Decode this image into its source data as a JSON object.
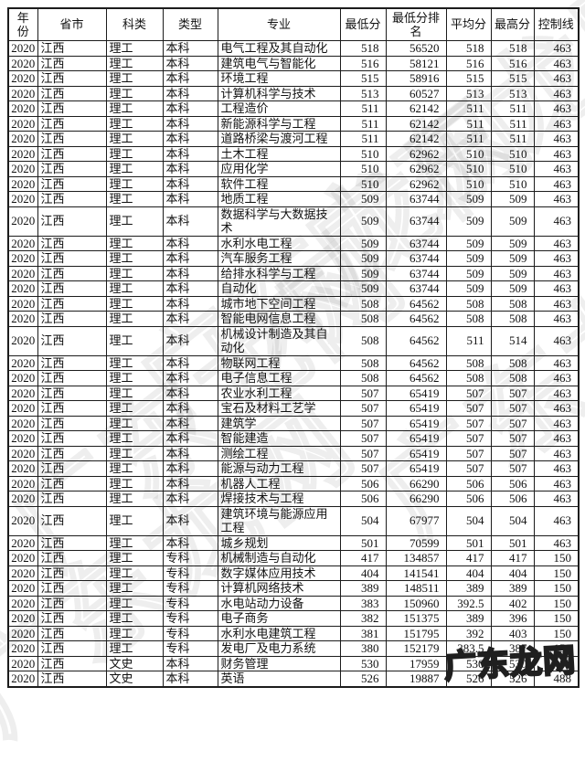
{
  "colors": {
    "border": "#1c1c1c",
    "text": "#111111",
    "background": "#ffffff"
  },
  "watermark": {
    "text": "广东龙网",
    "corner_text": "广东龙网"
  },
  "table": {
    "headers": [
      "年份",
      "省市",
      "科类",
      "类型",
      "专业",
      "最低分",
      "最低分排名",
      "平均分",
      "最高分",
      "控制线"
    ],
    "rows": [
      [
        "2020",
        "江西",
        "理工",
        "本科",
        "电气工程及其自动化",
        "518",
        "56520",
        "518",
        "518",
        "463"
      ],
      [
        "2020",
        "江西",
        "理工",
        "本科",
        "建筑电气与智能化",
        "516",
        "58121",
        "516",
        "516",
        "463"
      ],
      [
        "2020",
        "江西",
        "理工",
        "本科",
        "环境工程",
        "515",
        "58916",
        "515",
        "515",
        "463"
      ],
      [
        "2020",
        "江西",
        "理工",
        "本科",
        "计算机科学与技术",
        "513",
        "60527",
        "513",
        "513",
        "463"
      ],
      [
        "2020",
        "江西",
        "理工",
        "本科",
        "工程造价",
        "511",
        "62142",
        "511",
        "511",
        "463"
      ],
      [
        "2020",
        "江西",
        "理工",
        "本科",
        "新能源科学与工程",
        "511",
        "62142",
        "511",
        "511",
        "463"
      ],
      [
        "2020",
        "江西",
        "理工",
        "本科",
        "道路桥梁与渡河工程",
        "511",
        "62142",
        "511",
        "511",
        "463"
      ],
      [
        "2020",
        "江西",
        "理工",
        "本科",
        "土木工程",
        "510",
        "62962",
        "510",
        "510",
        "463"
      ],
      [
        "2020",
        "江西",
        "理工",
        "本科",
        "应用化学",
        "510",
        "62962",
        "510",
        "510",
        "463"
      ],
      [
        "2020",
        "江西",
        "理工",
        "本科",
        "软件工程",
        "510",
        "62962",
        "510",
        "510",
        "463"
      ],
      [
        "2020",
        "江西",
        "理工",
        "本科",
        "地质工程",
        "509",
        "63744",
        "509",
        "509",
        "463"
      ],
      [
        "2020",
        "江西",
        "理工",
        "本科",
        "数据科学与大数据技术",
        "509",
        "63744",
        "509",
        "509",
        "463"
      ],
      [
        "2020",
        "江西",
        "理工",
        "本科",
        "水利水电工程",
        "509",
        "63744",
        "509",
        "509",
        "463"
      ],
      [
        "2020",
        "江西",
        "理工",
        "本科",
        "汽车服务工程",
        "509",
        "63744",
        "509",
        "509",
        "463"
      ],
      [
        "2020",
        "江西",
        "理工",
        "本科",
        "给排水科学与工程",
        "509",
        "63744",
        "509",
        "509",
        "463"
      ],
      [
        "2020",
        "江西",
        "理工",
        "本科",
        "自动化",
        "509",
        "63744",
        "509",
        "509",
        "463"
      ],
      [
        "2020",
        "江西",
        "理工",
        "本科",
        "城市地下空间工程",
        "508",
        "64562",
        "508",
        "508",
        "463"
      ],
      [
        "2020",
        "江西",
        "理工",
        "本科",
        "智能电网信息工程",
        "508",
        "64562",
        "508",
        "508",
        "463"
      ],
      [
        "2020",
        "江西",
        "理工",
        "本科",
        "机械设计制造及其自动化",
        "508",
        "64562",
        "511",
        "514",
        "463"
      ],
      [
        "2020",
        "江西",
        "理工",
        "本科",
        "物联网工程",
        "508",
        "64562",
        "508",
        "508",
        "463"
      ],
      [
        "2020",
        "江西",
        "理工",
        "本科",
        "电子信息工程",
        "508",
        "64562",
        "508",
        "508",
        "463"
      ],
      [
        "2020",
        "江西",
        "理工",
        "本科",
        "农业水利工程",
        "507",
        "65419",
        "507",
        "507",
        "463"
      ],
      [
        "2020",
        "江西",
        "理工",
        "本科",
        "宝石及材料工艺学",
        "507",
        "65419",
        "507",
        "507",
        "463"
      ],
      [
        "2020",
        "江西",
        "理工",
        "本科",
        "建筑学",
        "507",
        "65419",
        "507",
        "507",
        "463"
      ],
      [
        "2020",
        "江西",
        "理工",
        "本科",
        "智能建造",
        "507",
        "65419",
        "507",
        "507",
        "463"
      ],
      [
        "2020",
        "江西",
        "理工",
        "本科",
        "测绘工程",
        "507",
        "65419",
        "507",
        "507",
        "463"
      ],
      [
        "2020",
        "江西",
        "理工",
        "本科",
        "能源与动力工程",
        "507",
        "65419",
        "507",
        "507",
        "463"
      ],
      [
        "2020",
        "江西",
        "理工",
        "本科",
        "机器人工程",
        "506",
        "66290",
        "506",
        "506",
        "463"
      ],
      [
        "2020",
        "江西",
        "理工",
        "本科",
        "焊接技术与工程",
        "506",
        "66290",
        "506",
        "506",
        "463"
      ],
      [
        "2020",
        "江西",
        "理工",
        "本科",
        "建筑环境与能源应用工程",
        "504",
        "67977",
        "504",
        "504",
        "463"
      ],
      [
        "2020",
        "江西",
        "理工",
        "本科",
        "城乡规划",
        "501",
        "70599",
        "501",
        "501",
        "463"
      ],
      [
        "2020",
        "江西",
        "理工",
        "专科",
        "机械制造与自动化",
        "417",
        "134857",
        "417",
        "417",
        "150"
      ],
      [
        "2020",
        "江西",
        "理工",
        "专科",
        "数字媒体应用技术",
        "404",
        "141541",
        "404",
        "404",
        "150"
      ],
      [
        "2020",
        "江西",
        "理工",
        "专科",
        "计算机网络技术",
        "389",
        "148511",
        "389",
        "389",
        "150"
      ],
      [
        "2020",
        "江西",
        "理工",
        "专科",
        "水电站动力设备",
        "383",
        "150960",
        "392.5",
        "402",
        "150"
      ],
      [
        "2020",
        "江西",
        "理工",
        "专科",
        "电子商务",
        "382",
        "151375",
        "389",
        "396",
        "150"
      ],
      [
        "2020",
        "江西",
        "理工",
        "专科",
        "水利水电建筑工程",
        "381",
        "151795",
        "392",
        "403",
        "150"
      ],
      [
        "2020",
        "江西",
        "理工",
        "专科",
        "发电厂及电力系统",
        "380",
        "152179",
        "383.5",
        "387",
        "150"
      ],
      [
        "2020",
        "江西",
        "文史",
        "本科",
        "财务管理",
        "530",
        "17959",
        "530",
        "530",
        "488"
      ],
      [
        "2020",
        "江西",
        "文史",
        "本科",
        "英语",
        "526",
        "19887",
        "526",
        "526",
        "488"
      ]
    ]
  }
}
